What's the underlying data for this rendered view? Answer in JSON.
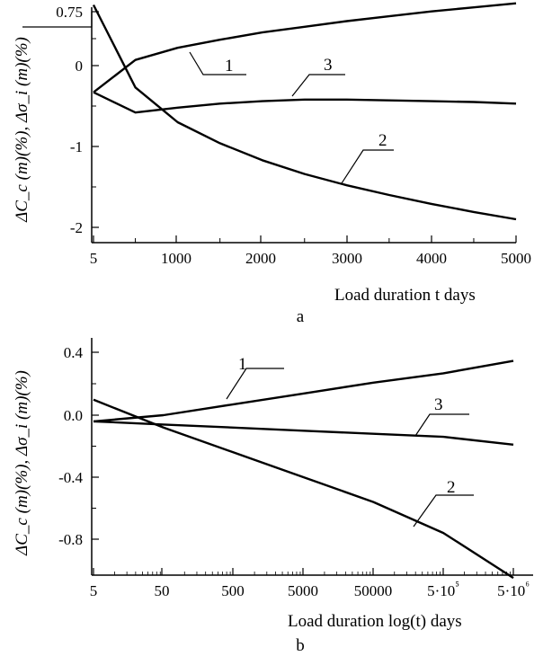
{
  "chart_data": [
    {
      "type": "line",
      "panel_label": "a",
      "ylabel": "ΔC_c (m)(%), Δσ_i (m)(%)",
      "xlabel": "Load duration t days",
      "x_ticks": [
        "5",
        "1000",
        "2000",
        "3000",
        "4000",
        "5000"
      ],
      "y_ticks": [
        "0.75",
        "0",
        "-1",
        "-2"
      ],
      "xlim": [
        5,
        5000
      ],
      "ylim": [
        -2.2,
        0.8
      ],
      "series": [
        {
          "name": "1",
          "points": [
            [
              5,
              -0.33
            ],
            [
              500,
              0.07
            ],
            [
              1000,
              0.22
            ],
            [
              1500,
              0.32
            ],
            [
              2000,
              0.41
            ],
            [
              2500,
              0.48
            ],
            [
              3000,
              0.55
            ],
            [
              3500,
              0.61
            ],
            [
              4000,
              0.67
            ],
            [
              4500,
              0.72
            ],
            [
              5000,
              0.77
            ]
          ]
        },
        {
          "name": "2",
          "points": [
            [
              5,
              0.75
            ],
            [
              500,
              -0.27
            ],
            [
              1000,
              -0.7
            ],
            [
              1500,
              -0.96
            ],
            [
              2000,
              -1.17
            ],
            [
              2500,
              -1.34
            ],
            [
              3000,
              -1.48
            ],
            [
              3500,
              -1.6
            ],
            [
              4000,
              -1.71
            ],
            [
              4500,
              -1.81
            ],
            [
              5000,
              -1.9
            ]
          ]
        },
        {
          "name": "3",
          "points": [
            [
              5,
              -0.33
            ],
            [
              500,
              -0.58
            ],
            [
              1000,
              -0.52
            ],
            [
              1500,
              -0.47
            ],
            [
              2000,
              -0.44
            ],
            [
              2500,
              -0.42
            ],
            [
              3000,
              -0.42
            ],
            [
              3500,
              -0.43
            ],
            [
              4000,
              -0.44
            ],
            [
              4500,
              -0.45
            ],
            [
              5000,
              -0.47
            ]
          ]
        }
      ]
    },
    {
      "type": "line",
      "panel_label": "b",
      "ylabel": "ΔC_c (m)(%), Δσ_i (m)(%)",
      "xlabel": "Load duration log(t) days",
      "x_ticks": [
        "5",
        "50",
        "500",
        "5000",
        "50000",
        "5·10⁵",
        "5·10⁶"
      ],
      "x_scale": "log",
      "y_ticks": [
        "0.4",
        "0.0",
        "-0.4",
        "-0.8"
      ],
      "xlim": [
        5,
        5000000
      ],
      "ylim": [
        -1.05,
        0.4
      ],
      "series": [
        {
          "name": "1",
          "points": [
            [
              5,
              -0.04
            ],
            [
              50,
              0.0
            ],
            [
              500,
              0.07
            ],
            [
              5000,
              0.14
            ],
            [
              50000,
              0.21
            ],
            [
              500000,
              0.27
            ],
            [
              5000000,
              0.35
            ]
          ]
        },
        {
          "name": "2",
          "points": [
            [
              5,
              0.1
            ],
            [
              50,
              -0.08
            ],
            [
              500,
              -0.24
            ],
            [
              5000,
              -0.4
            ],
            [
              50000,
              -0.56
            ],
            [
              500000,
              -0.76
            ],
            [
              5000000,
              -1.05
            ]
          ]
        },
        {
          "name": "3",
          "points": [
            [
              5,
              -0.04
            ],
            [
              50,
              -0.06
            ],
            [
              500,
              -0.08
            ],
            [
              5000,
              -0.1
            ],
            [
              50000,
              -0.12
            ],
            [
              500000,
              -0.14
            ],
            [
              5000000,
              -0.19
            ]
          ]
        }
      ]
    }
  ]
}
